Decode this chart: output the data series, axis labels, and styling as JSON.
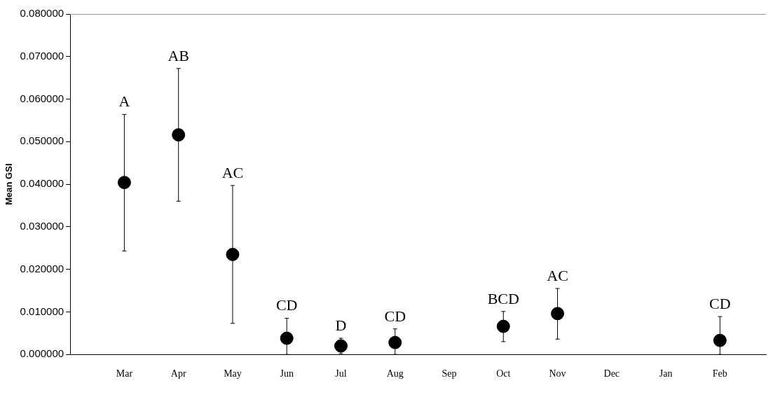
{
  "chart_data": {
    "type": "scatter",
    "ylabel": "Mean GSI",
    "categories": [
      "Mar",
      "Apr",
      "May",
      "Jun",
      "Jul",
      "Aug",
      "Sep",
      "Oct",
      "Nov",
      "Dec",
      "Jan",
      "Feb"
    ],
    "series": [
      {
        "color": "#000000",
        "values": [
          0.0404,
          0.0516,
          0.0235,
          0.0038,
          0.002,
          0.0028,
          null,
          0.0066,
          0.0096,
          null,
          null,
          0.0033
        ],
        "errors": [
          [
            0.0243,
            0.0564
          ],
          [
            0.036,
            0.0672
          ],
          [
            0.0073,
            0.0397
          ],
          [
            0,
            0.0085
          ],
          [
            0.0002,
            0.0038
          ],
          [
            0,
            0.006
          ],
          null,
          [
            0.003,
            0.0101
          ],
          [
            0.0036,
            0.0155
          ],
          null,
          null,
          [
            0,
            0.0089
          ]
        ]
      }
    ],
    "ylim": [
      0,
      0.08
    ],
    "yticks": [
      {
        "value": 0,
        "label": "0.000000"
      },
      {
        "value": 0.01,
        "label": "0.010000"
      },
      {
        "value": 0.02,
        "label": "0.020000"
      },
      {
        "value": 0.03,
        "label": "0.030000"
      },
      {
        "value": 0.04,
        "label": "0.040000"
      },
      {
        "value": 0.05,
        "label": "0.050000"
      },
      {
        "value": 0.06,
        "label": "0.060000"
      },
      {
        "value": 0.07,
        "label": "0.070000"
      },
      {
        "value": 0.08,
        "label": "0.080000"
      }
    ],
    "annotations": [
      {
        "text": "A",
        "x": "Mar",
        "y": 0.0564
      },
      {
        "text": "AB",
        "x": "Apr",
        "y": 0.0672
      },
      {
        "text": "AC",
        "x": "May",
        "y": 0.0397
      },
      {
        "text": "CD",
        "x": "Jun",
        "y": 0.0085
      },
      {
        "text": "D",
        "x": "Jul",
        "y": 0.0038
      },
      {
        "text": "CD",
        "x": "Aug",
        "y": 0.006
      },
      {
        "text": "BCD",
        "x": "Oct",
        "y": 0.0101
      },
      {
        "text": "AC",
        "x": "Nov",
        "y": 0.0155
      },
      {
        "text": "CD",
        "x": "Feb",
        "y": 0.0089
      }
    ],
    "marker": "circle",
    "grid": false,
    "legend": false
  }
}
